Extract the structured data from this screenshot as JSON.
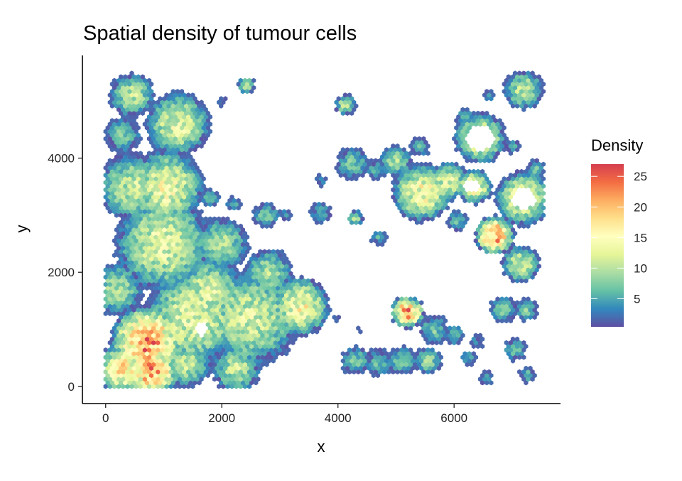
{
  "chart_data": {
    "type": "heatmap",
    "subtype": "hexbin",
    "title": "Spatial density of tumour cells",
    "xlabel": "x",
    "ylabel": "y",
    "xlim": [
      -400,
      7820
    ],
    "ylim": [
      -300,
      5800
    ],
    "x_ticks": [
      0,
      2000,
      4000,
      6000
    ],
    "y_ticks": [
      0,
      2000,
      4000
    ],
    "x_tick_labels": [
      "0",
      "2000",
      "4000",
      "6000"
    ],
    "y_tick_labels": [
      "0",
      "2000",
      "4000"
    ],
    "grid": false,
    "hex_width": 75,
    "legend": {
      "title": "Density",
      "placement": "right",
      "range": [
        0.4,
        27
      ],
      "ticks": [
        5,
        10,
        15,
        20,
        25
      ],
      "tick_labels": [
        "5",
        "10",
        "15",
        "20",
        "25"
      ],
      "palette": [
        "#5E4FA2",
        "#3288BD",
        "#66C2A5",
        "#ABDDA4",
        "#E6F598",
        "#FFFFBF",
        "#FEE08B",
        "#FDAE61",
        "#F46D43",
        "#D53E4F"
      ]
    },
    "clusters_note": "density field approximated by clusters [x, y, radius, peak_density]",
    "clusters": [
      [
        700,
        800,
        650,
        21
      ],
      [
        300,
        300,
        500,
        15
      ],
      [
        800,
        250,
        500,
        19
      ],
      [
        1500,
        1200,
        900,
        12
      ],
      [
        2500,
        1200,
        900,
        11
      ],
      [
        3350,
        1400,
        550,
        14
      ],
      [
        1000,
        2500,
        900,
        12
      ],
      [
        450,
        3500,
        650,
        10
      ],
      [
        1050,
        3500,
        700,
        13
      ],
      [
        1250,
        4600,
        600,
        12
      ],
      [
        450,
        5100,
        420,
        10
      ],
      [
        2000,
        2500,
        500,
        9
      ],
      [
        2800,
        2000,
        450,
        9
      ],
      [
        1800,
        1700,
        600,
        11
      ],
      [
        2250,
        300,
        450,
        10
      ],
      [
        1400,
        400,
        450,
        10
      ],
      [
        200,
        1700,
        500,
        9
      ],
      [
        300,
        4400,
        350,
        7
      ],
      [
        2420,
        5280,
        160,
        9
      ],
      [
        2000,
        5000,
        110,
        4
      ],
      [
        4135,
        4935,
        200,
        10
      ],
      [
        4250,
        3900,
        320,
        7
      ],
      [
        4650,
        3800,
        200,
        5
      ],
      [
        4300,
        2950,
        150,
        9
      ],
      [
        2765,
        3000,
        260,
        7
      ],
      [
        3700,
        3050,
        220,
        5
      ],
      [
        3100,
        3000,
        130,
        4
      ],
      [
        1800,
        3300,
        180,
        6
      ],
      [
        2200,
        3200,
        150,
        5
      ],
      [
        1900,
        2800,
        160,
        5
      ],
      [
        5200,
        1300,
        300,
        21
      ],
      [
        5650,
        1000,
        280,
        7
      ],
      [
        4300,
        450,
        280,
        7
      ],
      [
        4700,
        420,
        280,
        6
      ],
      [
        5100,
        450,
        280,
        7
      ],
      [
        5550,
        450,
        260,
        8
      ],
      [
        6000,
        900,
        200,
        6
      ],
      [
        6450,
        4350,
        480,
        13
      ],
      [
        5450,
        3400,
        550,
        14
      ],
      [
        5900,
        3600,
        350,
        12
      ],
      [
        6350,
        3500,
        320,
        15
      ],
      [
        6050,
        2900,
        200,
        6
      ],
      [
        7200,
        3300,
        520,
        13
      ],
      [
        6700,
        2650,
        360,
        21
      ],
      [
        7150,
        2150,
        360,
        11
      ],
      [
        6850,
        1350,
        260,
        7
      ],
      [
        7250,
        1350,
        220,
        7
      ],
      [
        7050,
        650,
        220,
        7
      ],
      [
        6250,
        500,
        150,
        5
      ],
      [
        6550,
        150,
        150,
        4
      ],
      [
        7250,
        200,
        160,
        6
      ],
      [
        7200,
        5200,
        380,
        10
      ],
      [
        5000,
        3950,
        300,
        9
      ],
      [
        5400,
        4200,
        200,
        6
      ],
      [
        6200,
        4700,
        200,
        6
      ],
      [
        7000,
        4200,
        150,
        5
      ],
      [
        4700,
        2600,
        150,
        5
      ],
      [
        3700,
        3600,
        120,
        4
      ],
      [
        4000,
        1200,
        80,
        3
      ],
      [
        4350,
        1000,
        80,
        3
      ],
      [
        7400,
        3800,
        200,
        7
      ],
      [
        6600,
        5100,
        120,
        4
      ],
      [
        6400,
        800,
        150,
        4
      ]
    ],
    "holes": [
      [
        6450,
        4350,
        230
      ],
      [
        7200,
        3300,
        200
      ],
      [
        6300,
        3500,
        120
      ],
      [
        1650,
        1000,
        120
      ]
    ]
  }
}
